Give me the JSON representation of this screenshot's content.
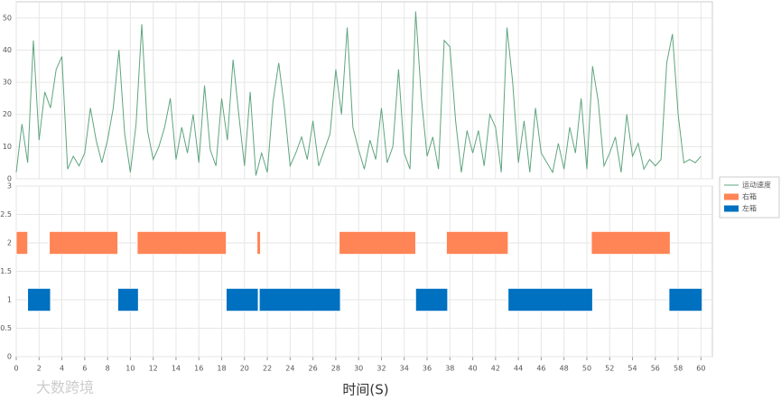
{
  "chart_data": [
    {
      "type": "line",
      "ylim": [
        0,
        55
      ],
      "yticks": [
        0,
        10,
        20,
        30,
        40,
        50
      ],
      "xlim": [
        0,
        61
      ],
      "grid": true,
      "x": [
        0,
        0.5,
        1,
        1.5,
        2,
        2.5,
        3,
        3.5,
        4,
        4.5,
        5,
        5.5,
        6,
        6.5,
        7,
        7.5,
        8,
        8.5,
        9,
        9.5,
        10,
        10.5,
        11,
        11.5,
        12,
        12.5,
        13,
        13.5,
        14,
        14.5,
        15,
        15.5,
        16,
        16.5,
        17,
        17.5,
        18,
        18.5,
        19,
        19.5,
        20,
        20.5,
        21,
        21.5,
        22,
        22.5,
        23,
        23.5,
        24,
        24.5,
        25,
        25.5,
        26,
        26.5,
        27,
        27.5,
        28,
        28.5,
        29,
        29.5,
        30,
        30.5,
        31,
        31.5,
        32,
        32.5,
        33,
        33.5,
        34,
        34.5,
        35,
        35.5,
        36,
        36.5,
        37,
        37.5,
        38,
        38.5,
        39,
        39.5,
        40,
        40.5,
        41,
        41.5,
        42,
        42.5,
        43,
        43.5,
        44,
        44.5,
        45,
        45.5,
        46,
        46.5,
        47,
        47.5,
        48,
        48.5,
        49,
        49.5,
        50,
        50.5,
        51,
        51.5,
        52,
        52.5,
        53,
        53.5,
        54,
        54.5,
        55,
        55.5,
        56,
        56.5,
        57,
        57.5,
        58,
        58.5,
        59,
        59.5,
        60
      ],
      "series": [
        {
          "name": "运动速度",
          "color": "#5fa57e",
          "values": [
            2,
            17,
            5,
            43,
            12,
            27,
            22,
            34,
            38,
            3,
            7,
            4,
            8,
            22,
            12,
            5,
            12,
            22,
            40,
            14,
            2,
            17,
            48,
            15,
            6,
            10,
            16,
            25,
            6,
            16,
            8,
            20,
            5,
            29,
            9,
            4,
            25,
            12,
            37,
            20,
            4,
            27,
            1,
            8,
            2,
            24,
            36,
            22,
            4,
            8,
            13,
            6,
            18,
            4,
            9,
            14,
            34,
            20,
            47,
            16,
            9,
            3,
            12,
            6,
            22,
            5,
            10,
            34,
            8,
            3,
            52,
            25,
            7,
            13,
            3,
            43,
            41,
            18,
            2,
            15,
            8,
            15,
            4,
            20,
            16,
            2,
            47,
            30,
            5,
            18,
            2,
            22,
            8,
            5,
            2,
            11,
            3,
            16,
            8,
            25,
            3,
            35,
            24,
            4,
            8,
            13,
            2,
            20,
            7,
            11,
            3,
            6,
            4,
            6,
            36,
            45,
            20,
            5,
            6,
            5,
            7
          ]
        }
      ]
    },
    {
      "type": "gantt",
      "ylim": [
        0,
        3
      ],
      "yticks": [
        0,
        0.5,
        1,
        1.5,
        2,
        2.5,
        3
      ],
      "xlim": [
        0,
        61
      ],
      "xticks": [
        0,
        2,
        4,
        6,
        8,
        10,
        12,
        14,
        16,
        18,
        20,
        22,
        24,
        26,
        28,
        30,
        32,
        34,
        36,
        38,
        40,
        42,
        44,
        46,
        48,
        50,
        52,
        54,
        56,
        58,
        60
      ],
      "x_label": "时间(S)",
      "grid": true,
      "series": [
        {
          "name": "右箱",
          "color": "#ff8456",
          "level": 2,
          "starts": [
            0,
            2.9,
            10.6,
            21.1,
            28.3,
            37.7,
            50.4
          ],
          "ends": [
            1.0,
            8.9,
            18.4,
            21.4,
            35.0,
            43.1,
            57.3
          ]
        },
        {
          "name": "左箱",
          "color": "#0070c0",
          "level": 1,
          "starts": [
            1.0,
            8.9,
            18.4,
            21.3,
            35.0,
            43.1,
            57.2
          ],
          "ends": [
            3.0,
            10.7,
            21.2,
            28.4,
            37.8,
            50.5,
            60.1
          ]
        }
      ]
    }
  ],
  "watermark": "大数跨境"
}
